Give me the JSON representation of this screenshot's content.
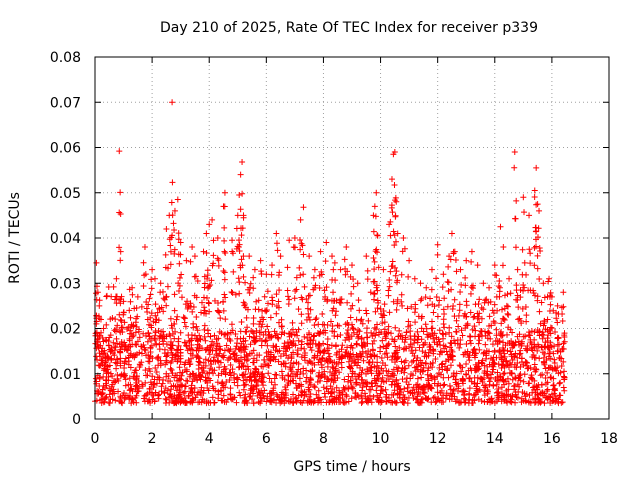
{
  "chart_data": {
    "type": "scatter",
    "title": "Day 210 of 2025, Rate Of TEC Index for receiver p339",
    "xlabel": "GPS time / hours",
    "ylabel": "ROTI / TECUs",
    "xlim": [
      0,
      18
    ],
    "ylim": [
      0,
      0.08
    ],
    "xticks": [
      0,
      2,
      4,
      6,
      8,
      10,
      12,
      14,
      16,
      18
    ],
    "xtick_labels": [
      "0",
      "2",
      "4",
      "6",
      "8",
      "10",
      "12",
      "14",
      "16",
      "18"
    ],
    "yticks": [
      0,
      0.01,
      0.02,
      0.03,
      0.04,
      0.05,
      0.06,
      0.07,
      0.08
    ],
    "ytick_labels": [
      "0",
      "0.01",
      "0.02",
      "0.03",
      "0.04",
      "0.05",
      "0.06",
      "0.07",
      "0.08"
    ],
    "grid": true,
    "marker": "plus",
    "color": "#ff0000",
    "data_x_range": [
      0,
      16.45
    ],
    "series": [
      {
        "name": "ROTI",
        "points": [
          [
            0.05,
            0.0345
          ],
          [
            0.1,
            0.028
          ],
          [
            0.15,
            0.025
          ],
          [
            0.3,
            0.02
          ],
          [
            0.5,
            0.018
          ],
          [
            0.75,
            0.031
          ],
          [
            0.85,
            0.0592
          ],
          [
            0.9,
            0.037
          ],
          [
            1.0,
            0.026
          ],
          [
            1.2,
            0.024
          ],
          [
            1.3,
            0.029
          ],
          [
            1.5,
            0.027
          ],
          [
            1.75,
            0.038
          ],
          [
            2.0,
            0.033
          ],
          [
            2.1,
            0.031
          ],
          [
            2.3,
            0.03
          ],
          [
            2.5,
            0.042
          ],
          [
            2.6,
            0.045
          ],
          [
            2.7,
            0.07
          ],
          [
            2.8,
            0.046
          ],
          [
            2.9,
            0.0485
          ],
          [
            3.0,
            0.039
          ],
          [
            3.2,
            0.035
          ],
          [
            3.4,
            0.038
          ],
          [
            3.5,
            0.036
          ],
          [
            3.6,
            0.0305
          ],
          [
            3.8,
            0.037
          ],
          [
            3.9,
            0.041
          ],
          [
            4.0,
            0.043
          ],
          [
            4.1,
            0.044
          ],
          [
            4.3,
            0.04
          ],
          [
            4.5,
            0.047
          ],
          [
            4.55,
            0.05
          ],
          [
            4.8,
            0.0395
          ],
          [
            5.0,
            0.045
          ],
          [
            5.05,
            0.0495
          ],
          [
            5.1,
            0.054
          ],
          [
            5.15,
            0.0568
          ],
          [
            5.2,
            0.045
          ],
          [
            5.4,
            0.036
          ],
          [
            5.6,
            0.033
          ],
          [
            5.8,
            0.035
          ],
          [
            6.0,
            0.032
          ],
          [
            6.2,
            0.034
          ],
          [
            6.35,
            0.041
          ],
          [
            6.5,
            0.036
          ],
          [
            6.8,
            0.0395
          ],
          [
            7.0,
            0.04
          ],
          [
            7.2,
            0.044
          ],
          [
            7.3,
            0.0468
          ],
          [
            7.5,
            0.036
          ],
          [
            7.7,
            0.033
          ],
          [
            7.9,
            0.037
          ],
          [
            8.1,
            0.039
          ],
          [
            8.3,
            0.036
          ],
          [
            8.4,
            0.0345
          ],
          [
            8.6,
            0.033
          ],
          [
            8.8,
            0.038
          ],
          [
            9.0,
            0.034
          ],
          [
            9.2,
            0.03
          ],
          [
            9.5,
            0.036
          ],
          [
            9.75,
            0.045
          ],
          [
            9.8,
            0.047
          ],
          [
            9.85,
            0.05
          ],
          [
            9.9,
            0.0405
          ],
          [
            10.1,
            0.033
          ],
          [
            10.3,
            0.043
          ],
          [
            10.4,
            0.053
          ],
          [
            10.45,
            0.0585
          ],
          [
            10.5,
            0.059
          ],
          [
            10.55,
            0.048
          ],
          [
            10.6,
            0.041
          ],
          [
            10.8,
            0.04
          ],
          [
            11.0,
            0.035
          ],
          [
            11.2,
            0.031
          ],
          [
            11.4,
            0.03
          ],
          [
            11.6,
            0.029
          ],
          [
            11.8,
            0.033
          ],
          [
            12.0,
            0.0385
          ],
          [
            12.2,
            0.032
          ],
          [
            12.4,
            0.036
          ],
          [
            12.5,
            0.041
          ],
          [
            12.6,
            0.037
          ],
          [
            12.8,
            0.033
          ],
          [
            13.0,
            0.035
          ],
          [
            13.2,
            0.037
          ],
          [
            13.4,
            0.034
          ],
          [
            13.6,
            0.03
          ],
          [
            13.8,
            0.029
          ],
          [
            14.0,
            0.034
          ],
          [
            14.2,
            0.0425
          ],
          [
            14.3,
            0.038
          ],
          [
            14.5,
            0.031
          ],
          [
            14.7,
            0.059
          ],
          [
            14.8,
            0.033
          ],
          [
            14.9,
            0.0285
          ],
          [
            15.0,
            0.049
          ],
          [
            15.05,
            0.0345
          ],
          [
            15.2,
            0.045
          ],
          [
            15.4,
            0.0505
          ],
          [
            15.45,
            0.0555
          ],
          [
            15.5,
            0.0475
          ],
          [
            15.55,
            0.046
          ],
          [
            15.7,
            0.03
          ],
          [
            15.9,
            0.031
          ],
          [
            16.0,
            0.027
          ],
          [
            16.2,
            0.025
          ],
          [
            16.4,
            0.028
          ]
        ]
      }
    ]
  }
}
